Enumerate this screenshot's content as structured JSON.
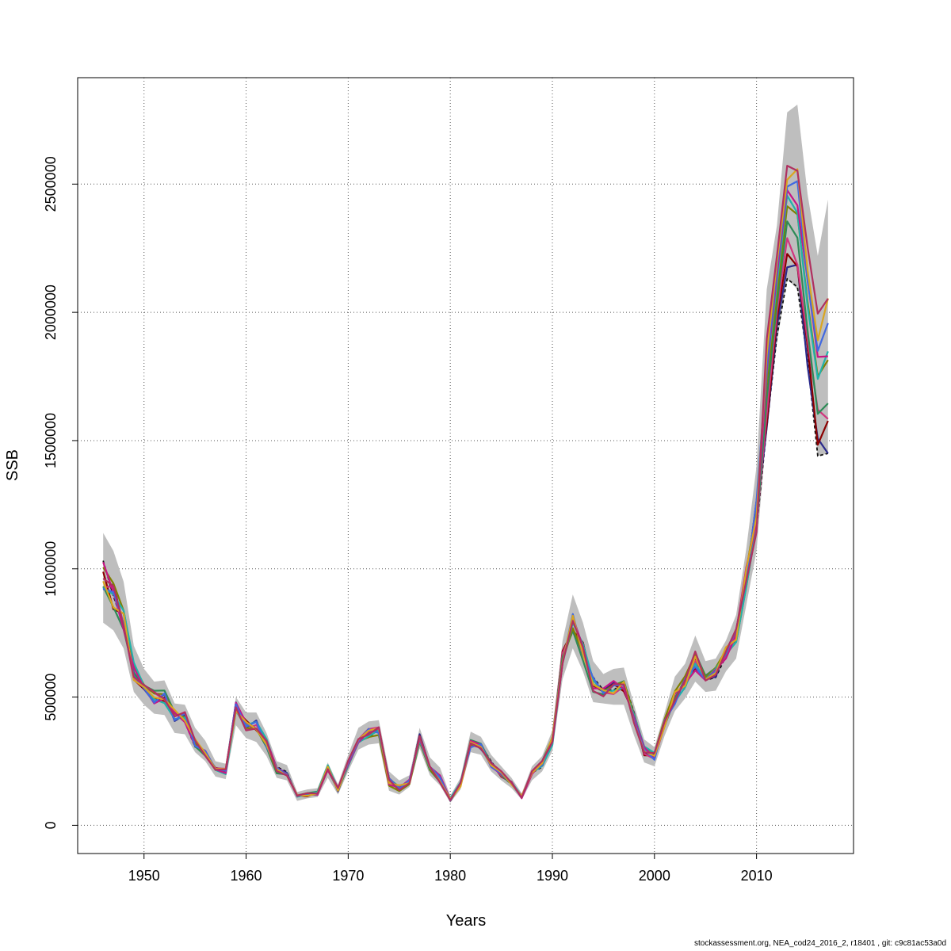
{
  "chart_data": {
    "type": "line",
    "title": "",
    "xlabel": "Years",
    "ylabel": "SSB",
    "xlim": [
      1943.5,
      2019.5
    ],
    "ylim": [
      -110000,
      2915000
    ],
    "x_ticks": [
      1950,
      1960,
      1970,
      1980,
      1990,
      2000,
      2010
    ],
    "y_ticks": [
      0,
      500000,
      1000000,
      1500000,
      2000000,
      2500000
    ],
    "y_tick_labels": [
      "0",
      "500000",
      "1000000",
      "1500000",
      "2000000",
      "2500000"
    ],
    "grid": true,
    "legend": "none",
    "x": [
      1946,
      1947,
      1948,
      1949,
      1950,
      1951,
      1952,
      1953,
      1954,
      1955,
      1956,
      1957,
      1958,
      1959,
      1960,
      1961,
      1962,
      1963,
      1964,
      1965,
      1966,
      1967,
      1968,
      1969,
      1970,
      1971,
      1972,
      1973,
      1974,
      1975,
      1976,
      1977,
      1978,
      1979,
      1980,
      1981,
      1982,
      1983,
      1984,
      1985,
      1986,
      1987,
      1988,
      1989,
      1990,
      1991,
      1992,
      1993,
      1994,
      1995,
      1996,
      1997,
      1998,
      1999,
      2000,
      2001,
      2002,
      2003,
      2004,
      2005,
      2006,
      2007,
      2008,
      2009,
      2010,
      2011,
      2012,
      2013,
      2014,
      2015,
      2016,
      2017
    ],
    "base": [
      960000,
      900000,
      800000,
      600000,
      530000,
      500000,
      500000,
      430000,
      420000,
      320000,
      280000,
      220000,
      210000,
      460000,
      390000,
      385000,
      320000,
      215000,
      205000,
      115000,
      120000,
      125000,
      225000,
      140000,
      240000,
      340000,
      360000,
      370000,
      170000,
      145000,
      170000,
      340000,
      230000,
      180000,
      100000,
      160000,
      320000,
      310000,
      240000,
      200000,
      165000,
      110000,
      205000,
      240000,
      330000,
      650000,
      780000,
      680000,
      550000,
      520000,
      540000,
      545000,
      420000,
      290000,
      270000,
      400000,
      500000,
      560000,
      640000,
      560000,
      600000,
      670000,
      740000,
      970000,
      1200000,
      1700000,
      2050000,
      2380000,
      2340000,
      2000000,
      1700000,
      1750000
    ],
    "band_lower": [
      790000,
      760000,
      690000,
      520000,
      470000,
      435000,
      430000,
      360000,
      355000,
      285000,
      250000,
      190000,
      180000,
      390000,
      340000,
      325000,
      270000,
      185000,
      175000,
      95000,
      105000,
      110000,
      185000,
      120000,
      210000,
      295000,
      315000,
      320000,
      135000,
      120000,
      150000,
      300000,
      195000,
      155000,
      88000,
      140000,
      285000,
      275000,
      210000,
      175000,
      145000,
      100000,
      175000,
      210000,
      290000,
      570000,
      690000,
      600000,
      480000,
      475000,
      470000,
      470000,
      350000,
      245000,
      230000,
      350000,
      445000,
      495000,
      560000,
      520000,
      525000,
      600000,
      650000,
      860000,
      1070000,
      1550000,
      1880000,
      2130000,
      2090000,
      1790000,
      1440000,
      1450000
    ],
    "band_upper": [
      1140000,
      1070000,
      950000,
      700000,
      610000,
      560000,
      565000,
      475000,
      470000,
      380000,
      330000,
      250000,
      240000,
      500000,
      440000,
      440000,
      360000,
      250000,
      235000,
      130000,
      140000,
      145000,
      245000,
      160000,
      275000,
      380000,
      405000,
      410000,
      210000,
      175000,
      195000,
      380000,
      265000,
      225000,
      115000,
      185000,
      365000,
      345000,
      275000,
      230000,
      185000,
      125000,
      230000,
      270000,
      370000,
      720000,
      900000,
      790000,
      640000,
      590000,
      610000,
      615000,
      470000,
      335000,
      305000,
      440000,
      580000,
      630000,
      740000,
      640000,
      650000,
      720000,
      820000,
      1080000,
      1400000,
      2090000,
      2340000,
      2780000,
      2810000,
      2460000,
      2220000,
      2440000
    ]
  },
  "colors": {
    "band": "#bebebe",
    "grid": "#555555",
    "series": [
      "#111111",
      "#2a2a8c",
      "#8b0000",
      "#d1357e",
      "#2e8b57",
      "#808000",
      "#20b2aa",
      "#c71585",
      "#4169e1",
      "#daa520",
      "#b03060"
    ]
  },
  "footer": "stockassessment.org, NEA_cod24_2016_2, r18401 , git: c9c81ac53a0d"
}
